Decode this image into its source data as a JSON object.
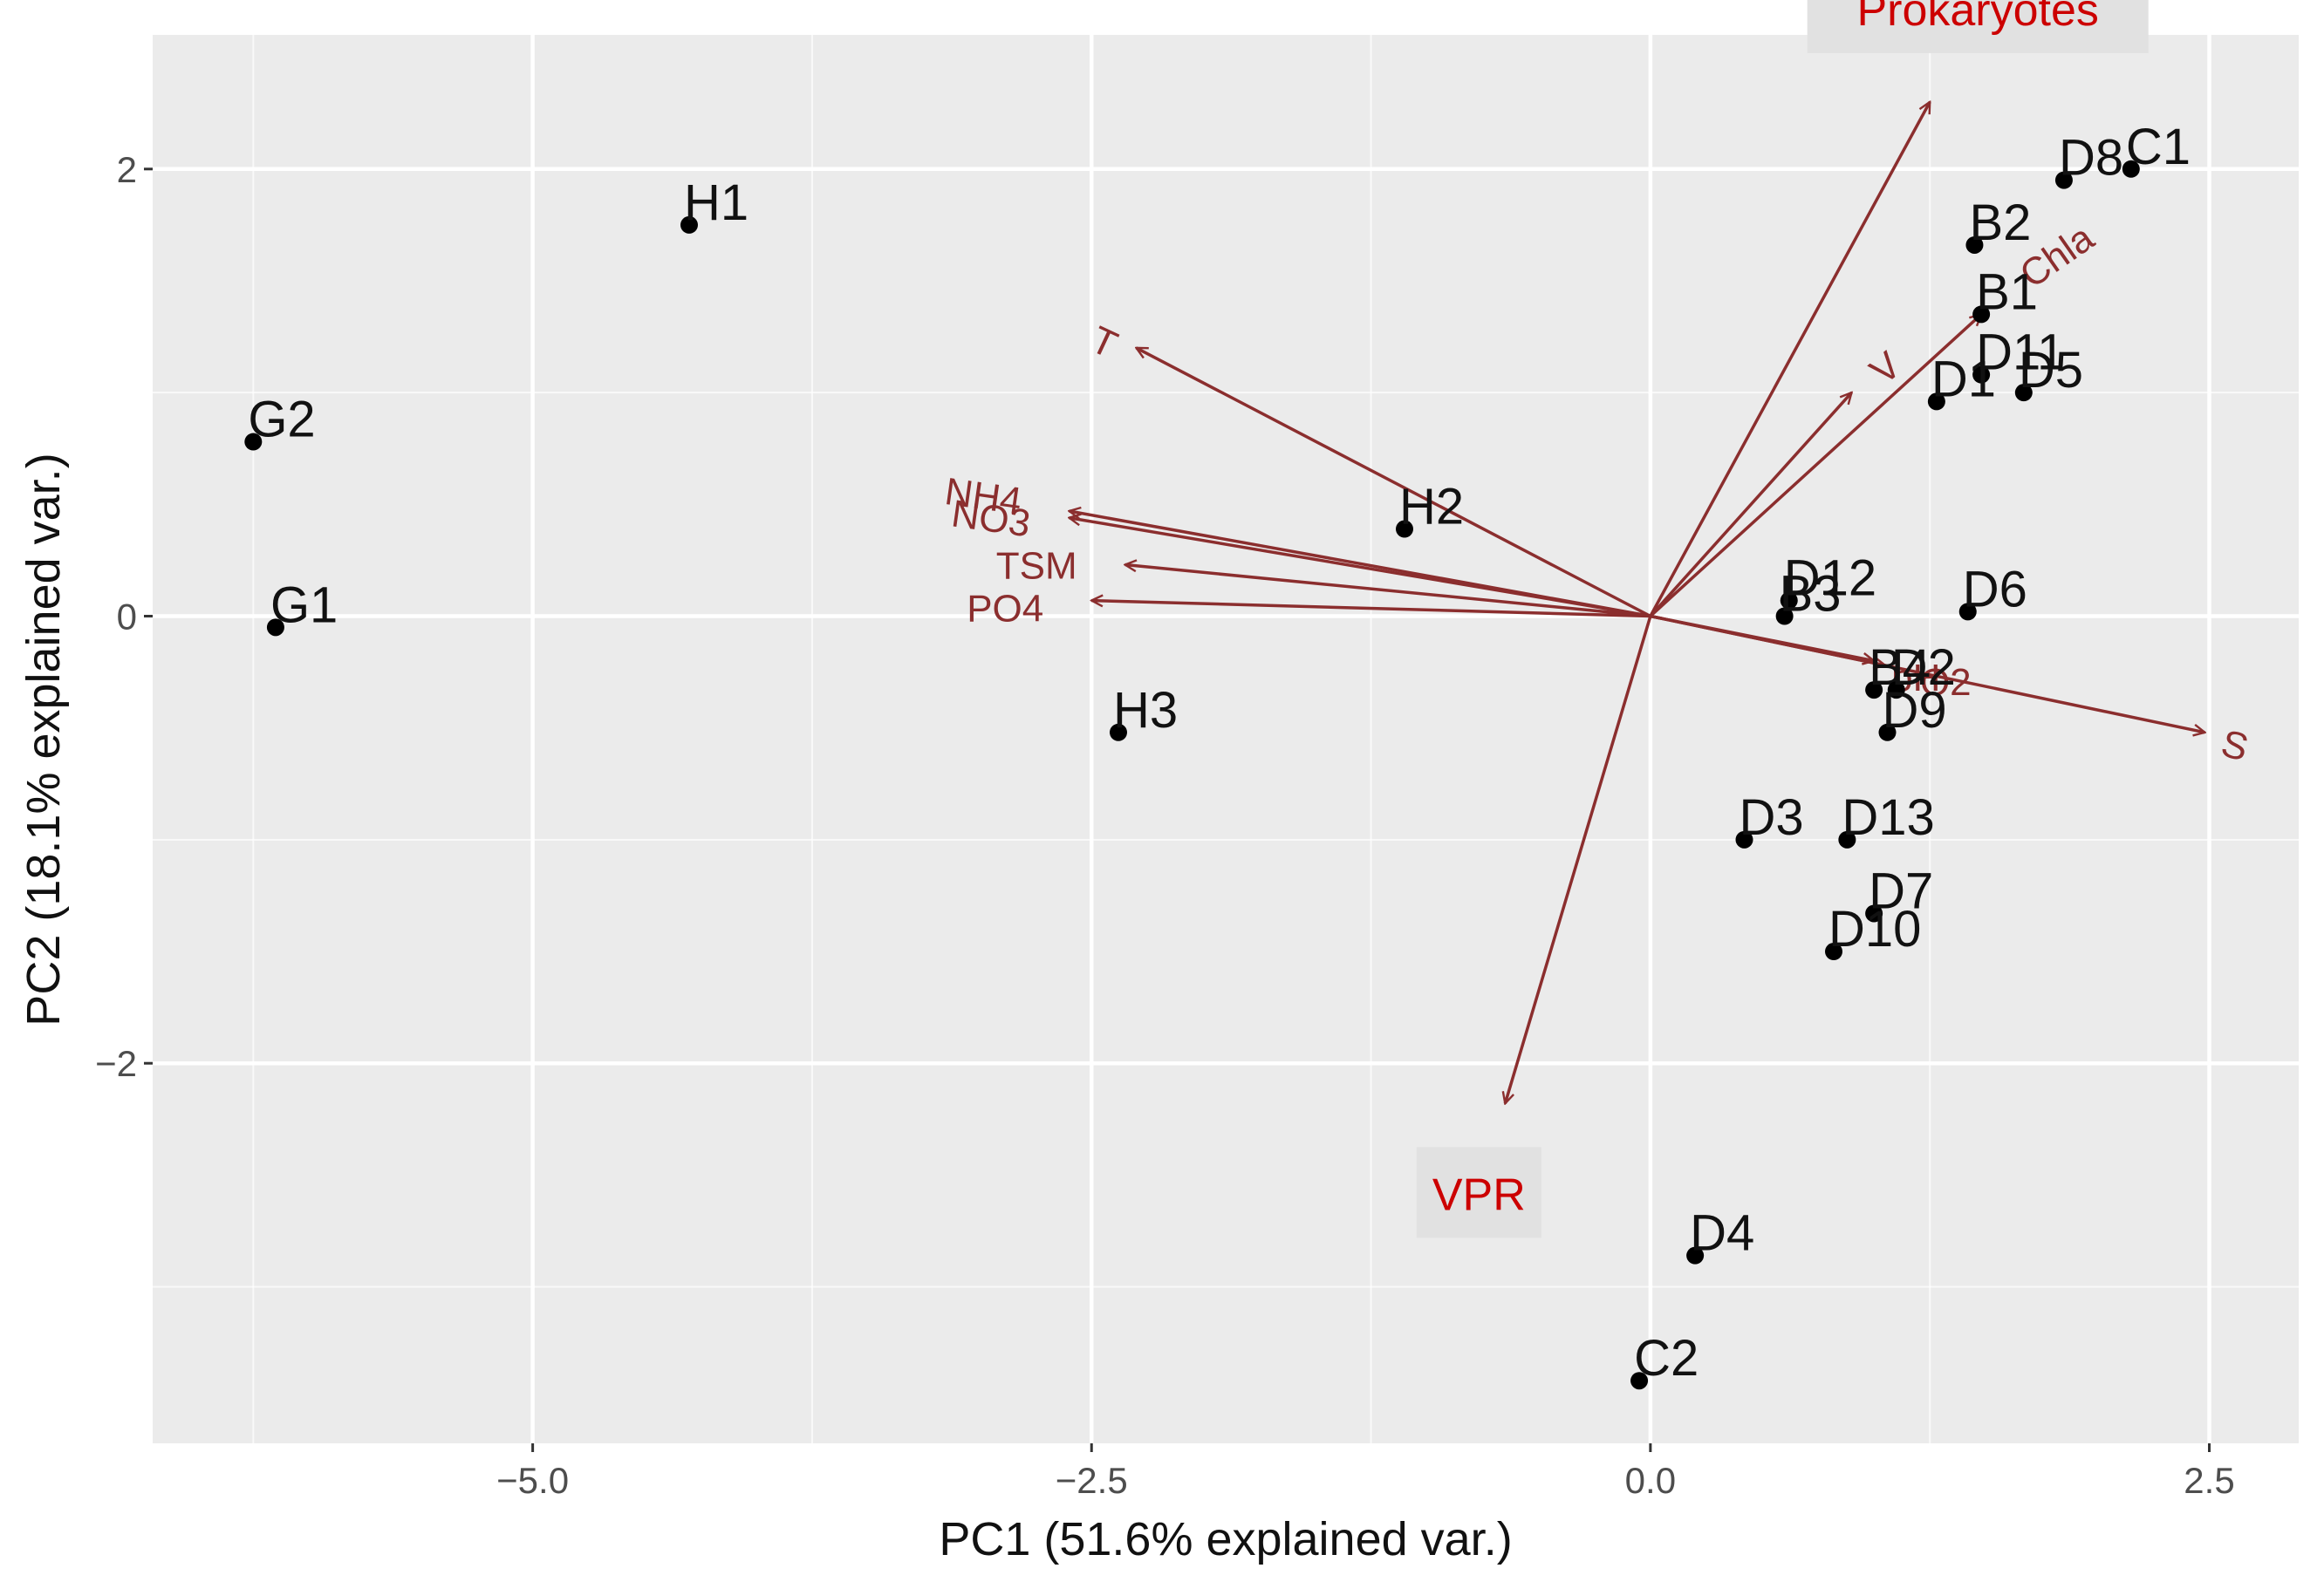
{
  "chart_data": {
    "type": "scatter",
    "subtype": "pca-biplot",
    "title": "",
    "xlabel": "PC1 (51.6% explained var.)",
    "ylabel": "PC2 (18.1% explained var.)",
    "xlim": [
      -6.7,
      2.9
    ],
    "ylim": [
      -3.7,
      2.6
    ],
    "xticks": [
      -5.0,
      -2.5,
      0.0,
      2.5
    ],
    "xtick_labels": [
      "−5.0",
      "−2.5",
      "0.0",
      "2.5"
    ],
    "yticks": [
      -2,
      0,
      2
    ],
    "ytick_labels": [
      "−2",
      "0",
      "2"
    ],
    "grid": true,
    "colors": {
      "panel": "#ebebeb",
      "grid": "#ffffff",
      "points": "#000000",
      "vectors": "#8b2e2e",
      "highlight_text": "#cc0000",
      "highlight_box": "#e1e1e1"
    },
    "points": [
      {
        "label": "H1",
        "x": -4.3,
        "y": 1.75
      },
      {
        "label": "G2",
        "x": -6.25,
        "y": 0.78
      },
      {
        "label": "G1",
        "x": -6.15,
        "y": -0.05
      },
      {
        "label": "H2",
        "x": -1.1,
        "y": 0.39
      },
      {
        "label": "H3",
        "x": -2.38,
        "y": -0.52
      },
      {
        "label": "D8",
        "x": 1.85,
        "y": 1.95
      },
      {
        "label": "C1",
        "x": 2.15,
        "y": 2.0
      },
      {
        "label": "B2",
        "x": 1.45,
        "y": 1.66
      },
      {
        "label": "B1",
        "x": 1.48,
        "y": 1.35
      },
      {
        "label": "D11",
        "x": 1.48,
        "y": 1.08
      },
      {
        "label": "D1",
        "x": 1.28,
        "y": 0.96
      },
      {
        "label": "D5",
        "x": 1.67,
        "y": 1.0
      },
      {
        "label": "D12",
        "x": 0.62,
        "y": 0.07
      },
      {
        "label": "B3",
        "x": 0.6,
        "y": 0.0
      },
      {
        "label": "D6",
        "x": 1.42,
        "y": 0.02
      },
      {
        "label": "B4",
        "x": 1.0,
        "y": -0.33
      },
      {
        "label": "D2",
        "x": 1.1,
        "y": -0.33
      },
      {
        "label": "D9",
        "x": 1.06,
        "y": -0.52
      },
      {
        "label": "D3",
        "x": 0.42,
        "y": -1.0
      },
      {
        "label": "D13",
        "x": 0.88,
        "y": -1.0
      },
      {
        "label": "D7",
        "x": 1.0,
        "y": -1.33
      },
      {
        "label": "D10",
        "x": 0.82,
        "y": -1.5
      },
      {
        "label": "D4",
        "x": 0.2,
        "y": -2.86
      },
      {
        "label": "C2",
        "x": -0.05,
        "y": -3.42
      }
    ],
    "vectors": [
      {
        "label": "Prokaryotes",
        "x": 1.25,
        "y": 2.3
      },
      {
        "label": "Chla",
        "x": 1.48,
        "y": 1.35
      },
      {
        "label": "V",
        "x": 0.9,
        "y": 1.0
      },
      {
        "label": "T",
        "x": -2.3,
        "y": 1.2
      },
      {
        "label": "NH4",
        "x": -2.6,
        "y": 0.47
      },
      {
        "label": "NO3",
        "x": -2.6,
        "y": 0.44
      },
      {
        "label": "TSM",
        "x": -2.35,
        "y": 0.23
      },
      {
        "label": "PO4",
        "x": -2.5,
        "y": 0.07
      },
      {
        "label": "S",
        "x": 2.48,
        "y": -0.52
      },
      {
        "label": "O2",
        "x": 1.05,
        "y": -0.22
      },
      {
        "label": "pH",
        "x": 1.0,
        "y": -0.2
      },
      {
        "label": "VPR",
        "x": -0.65,
        "y": -2.18
      }
    ],
    "highlight_labels": [
      "Prokaryotes",
      "VPR"
    ]
  }
}
